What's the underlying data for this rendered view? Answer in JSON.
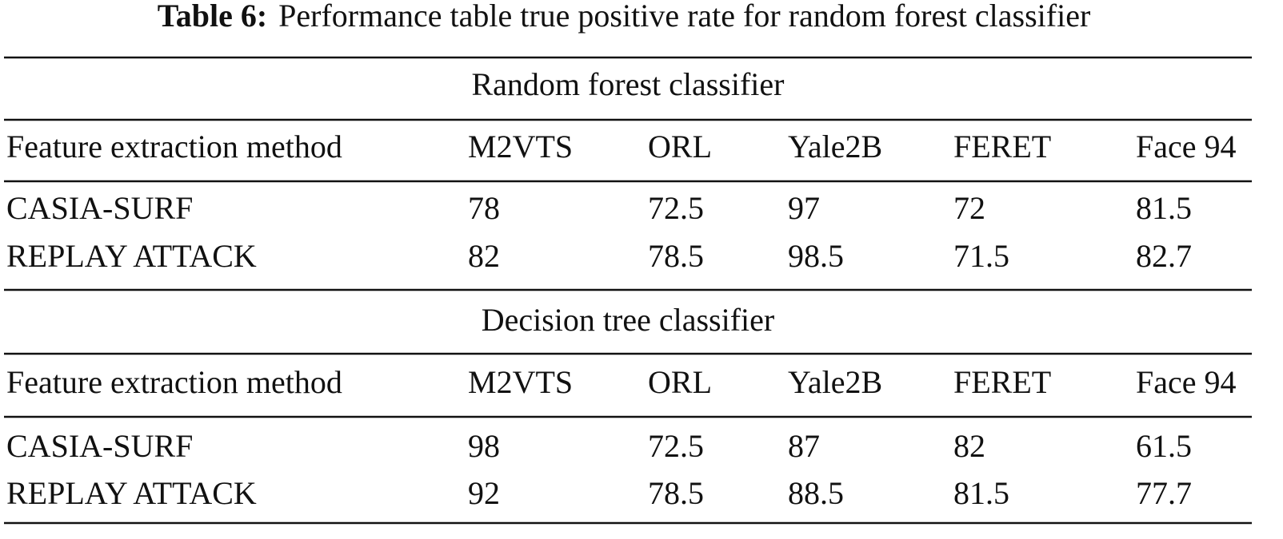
{
  "caption": {
    "label": "Table 6:",
    "text": "Performance table true positive rate for random forest classifier"
  },
  "table": {
    "sections": [
      {
        "title": "Random forest classifier",
        "header": [
          "Feature extraction method",
          "M2VTS",
          "ORL",
          "Yale2B",
          "FERET",
          "Face 94"
        ],
        "rows": [
          [
            "CASIA-SURF",
            "78",
            "72.5",
            "97",
            "72",
            "81.5"
          ],
          [
            "REPLAY ATTACK",
            "82",
            "78.5",
            "98.5",
            "71.5",
            "82.7"
          ]
        ]
      },
      {
        "title": "Decision tree classifier",
        "header": [
          "Feature extraction method",
          "M2VTS",
          "ORL",
          "Yale2B",
          "FERET",
          "Face 94"
        ],
        "rows": [
          [
            "CASIA-SURF",
            "98",
            "72.5",
            "87",
            "82",
            "61.5"
          ],
          [
            "REPLAY ATTACK",
            "92",
            "78.5",
            "88.5",
            "81.5",
            "77.7"
          ]
        ]
      }
    ]
  }
}
